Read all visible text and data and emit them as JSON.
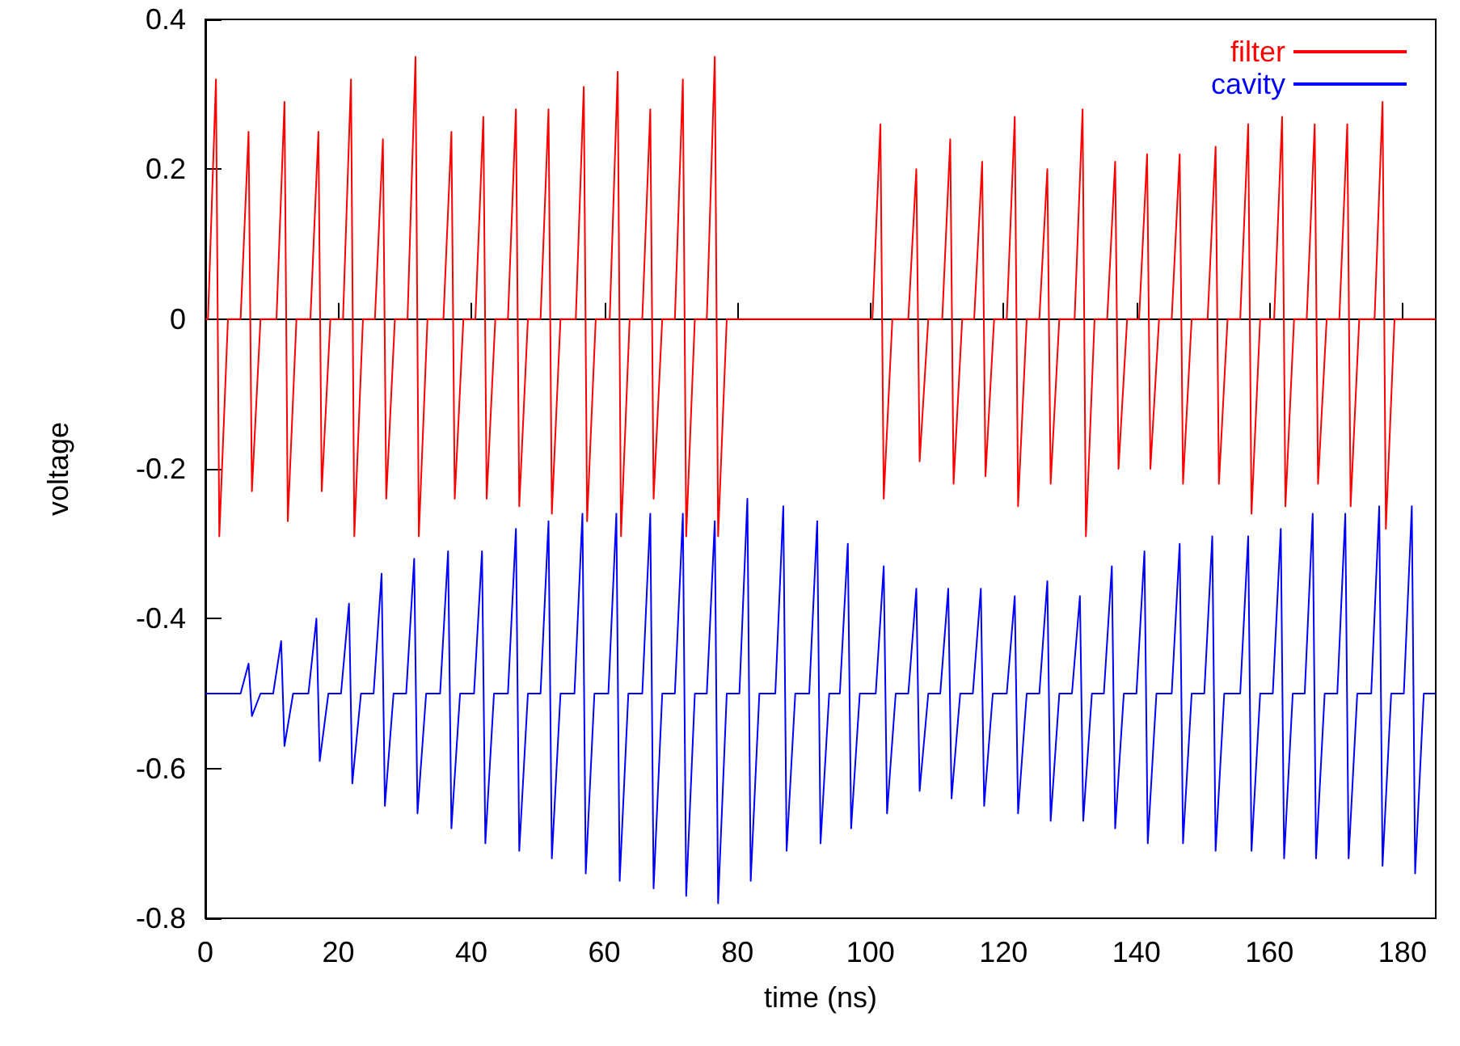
{
  "chart_data": {
    "type": "line",
    "xlabel": "time (ns)",
    "ylabel": "voltage",
    "xlim": [
      0,
      185
    ],
    "ylim": [
      -0.8,
      0.4
    ],
    "xticks": [
      0,
      20,
      40,
      60,
      80,
      100,
      120,
      140,
      160,
      180
    ],
    "yticks": [
      -0.8,
      -0.6,
      -0.4,
      -0.2,
      0,
      0.2,
      0.4
    ],
    "legend": "top right",
    "line_style": "solid",
    "series": [
      {
        "name": "filter",
        "color": "#ff0000",
        "x": [
          0,
          0.4,
          1.6,
          2.1,
          3.4,
          5.3,
          6.5,
          7.0,
          8.3,
          10.7,
          11.9,
          12.4,
          13.7,
          15.8,
          17.0,
          17.5,
          18.8,
          20.7,
          21.9,
          22.4,
          23.7,
          25.5,
          26.7,
          27.2,
          28.5,
          30.4,
          31.6,
          32.1,
          33.4,
          35.8,
          37.0,
          37.5,
          38.8,
          40.6,
          41.8,
          42.3,
          43.6,
          45.5,
          46.7,
          47.2,
          48.5,
          50.4,
          51.6,
          52.1,
          53.4,
          55.7,
          56.9,
          57.4,
          58.7,
          60.8,
          62.0,
          62.5,
          63.8,
          65.7,
          66.9,
          67.4,
          68.7,
          70.6,
          71.8,
          72.3,
          73.6,
          75.4,
          76.6,
          77.1,
          78.4,
          80,
          100,
          100.3,
          101.5,
          102.0,
          103.3,
          105.7,
          106.9,
          107.4,
          108.7,
          110.8,
          112.0,
          112.5,
          113.8,
          115.6,
          116.8,
          117.3,
          118.6,
          120.5,
          121.7,
          122.2,
          123.5,
          125.4,
          126.6,
          127.1,
          128.4,
          130.7,
          131.9,
          132.4,
          133.7,
          135.6,
          136.8,
          137.3,
          138.6,
          140.4,
          141.6,
          142.1,
          143.4,
          145.3,
          146.5,
          147.0,
          148.3,
          150.7,
          151.9,
          152.4,
          153.7,
          155.6,
          156.8,
          157.3,
          158.6,
          160.7,
          161.9,
          162.4,
          163.7,
          165.6,
          166.8,
          167.3,
          168.6,
          170.5,
          171.7,
          172.2,
          173.5,
          175.8,
          177.0,
          177.5,
          178.8,
          185
        ],
        "values": [
          0,
          0,
          0.32,
          -0.29,
          0,
          0,
          0.25,
          -0.23,
          0,
          0,
          0.29,
          -0.27,
          0,
          0,
          0.25,
          -0.23,
          0,
          0,
          0.32,
          -0.29,
          0,
          0,
          0.24,
          -0.24,
          0,
          0,
          0.35,
          -0.29,
          0,
          0,
          0.25,
          -0.24,
          0,
          0,
          0.27,
          -0.24,
          0,
          0,
          0.28,
          -0.25,
          0,
          0,
          0.28,
          -0.26,
          0,
          0,
          0.31,
          -0.27,
          0,
          0,
          0.33,
          -0.29,
          0,
          0,
          0.28,
          -0.24,
          0,
          0,
          0.32,
          -0.29,
          0,
          0,
          0.35,
          -0.29,
          0,
          0,
          0,
          0,
          0.26,
          -0.24,
          0,
          0,
          0.2,
          -0.19,
          0,
          0,
          0.24,
          -0.22,
          0,
          0,
          0.21,
          -0.21,
          0,
          0,
          0.27,
          -0.25,
          0,
          0,
          0.2,
          -0.22,
          0,
          0,
          0.28,
          -0.29,
          0,
          0,
          0.21,
          -0.2,
          0,
          0,
          0.22,
          -0.2,
          0,
          0,
          0.22,
          -0.22,
          0,
          0,
          0.23,
          -0.22,
          0,
          0,
          0.26,
          -0.26,
          0,
          0,
          0.27,
          -0.25,
          0,
          0,
          0.26,
          -0.22,
          0,
          0,
          0.26,
          -0.25,
          0,
          0,
          0.29,
          -0.28,
          0,
          0
        ]
      },
      {
        "name": "cavity",
        "color": "#0000ff",
        "x": [
          0,
          5.3,
          6.5,
          7.0,
          8.3,
          10.2,
          11.4,
          11.9,
          13.2,
          15.5,
          16.7,
          17.2,
          18.5,
          20.4,
          21.6,
          22.1,
          23.4,
          25.3,
          26.5,
          27.0,
          28.3,
          30.2,
          31.4,
          31.9,
          33.2,
          35.3,
          36.5,
          37.0,
          38.3,
          40.4,
          41.6,
          42.1,
          43.4,
          45.5,
          46.7,
          47.2,
          48.5,
          50.4,
          51.6,
          52.1,
          53.4,
          55.5,
          56.7,
          57.2,
          58.5,
          60.6,
          61.8,
          62.3,
          63.6,
          65.7,
          66.9,
          67.4,
          68.7,
          70.6,
          71.8,
          72.3,
          73.6,
          75.4,
          76.6,
          77.1,
          78.4,
          80.3,
          81.5,
          82.0,
          83.3,
          85.7,
          86.9,
          87.4,
          88.7,
          90.8,
          92.0,
          92.5,
          93.8,
          95.4,
          96.6,
          97.1,
          98.4,
          100.8,
          102.0,
          102.5,
          103.8,
          105.7,
          106.9,
          107.4,
          108.7,
          110.5,
          111.7,
          112.2,
          113.5,
          115.4,
          116.6,
          117.1,
          118.4,
          120.5,
          121.7,
          122.2,
          123.5,
          125.4,
          126.6,
          127.1,
          128.4,
          130.3,
          131.5,
          132.0,
          133.3,
          135.1,
          136.3,
          136.8,
          138.1,
          140.0,
          141.2,
          141.7,
          143.0,
          145.3,
          146.5,
          147.0,
          148.3,
          150.2,
          151.4,
          151.9,
          153.2,
          155.6,
          156.8,
          157.3,
          158.6,
          160.5,
          161.7,
          162.2,
          163.5,
          165.3,
          166.5,
          167.0,
          168.3,
          170.2,
          171.4,
          171.9,
          173.2,
          175.3,
          176.5,
          177.0,
          178.3,
          180.2,
          181.4,
          181.9,
          183.2,
          185
        ],
        "values": [
          -0.5,
          -0.5,
          -0.46,
          -0.53,
          -0.5,
          -0.5,
          -0.43,
          -0.57,
          -0.5,
          -0.5,
          -0.4,
          -0.59,
          -0.5,
          -0.5,
          -0.38,
          -0.62,
          -0.5,
          -0.5,
          -0.34,
          -0.65,
          -0.5,
          -0.5,
          -0.32,
          -0.66,
          -0.5,
          -0.5,
          -0.31,
          -0.68,
          -0.5,
          -0.5,
          -0.31,
          -0.7,
          -0.5,
          -0.5,
          -0.28,
          -0.71,
          -0.5,
          -0.5,
          -0.27,
          -0.72,
          -0.5,
          -0.5,
          -0.26,
          -0.74,
          -0.5,
          -0.5,
          -0.26,
          -0.75,
          -0.5,
          -0.5,
          -0.26,
          -0.76,
          -0.5,
          -0.5,
          -0.26,
          -0.77,
          -0.5,
          -0.5,
          -0.27,
          -0.78,
          -0.5,
          -0.5,
          -0.24,
          -0.75,
          -0.5,
          -0.5,
          -0.25,
          -0.71,
          -0.5,
          -0.5,
          -0.27,
          -0.7,
          -0.5,
          -0.5,
          -0.3,
          -0.68,
          -0.5,
          -0.5,
          -0.33,
          -0.66,
          -0.5,
          -0.5,
          -0.36,
          -0.63,
          -0.5,
          -0.5,
          -0.36,
          -0.64,
          -0.5,
          -0.5,
          -0.36,
          -0.65,
          -0.5,
          -0.5,
          -0.37,
          -0.66,
          -0.5,
          -0.5,
          -0.35,
          -0.67,
          -0.5,
          -0.5,
          -0.37,
          -0.67,
          -0.5,
          -0.5,
          -0.33,
          -0.68,
          -0.5,
          -0.5,
          -0.31,
          -0.7,
          -0.5,
          -0.5,
          -0.3,
          -0.7,
          -0.5,
          -0.5,
          -0.29,
          -0.71,
          -0.5,
          -0.5,
          -0.29,
          -0.71,
          -0.5,
          -0.5,
          -0.28,
          -0.72,
          -0.5,
          -0.5,
          -0.26,
          -0.72,
          -0.5,
          -0.5,
          -0.26,
          -0.72,
          -0.5,
          -0.5,
          -0.25,
          -0.73,
          -0.5,
          -0.5,
          -0.25,
          -0.74,
          -0.5,
          -0.5
        ]
      }
    ]
  }
}
